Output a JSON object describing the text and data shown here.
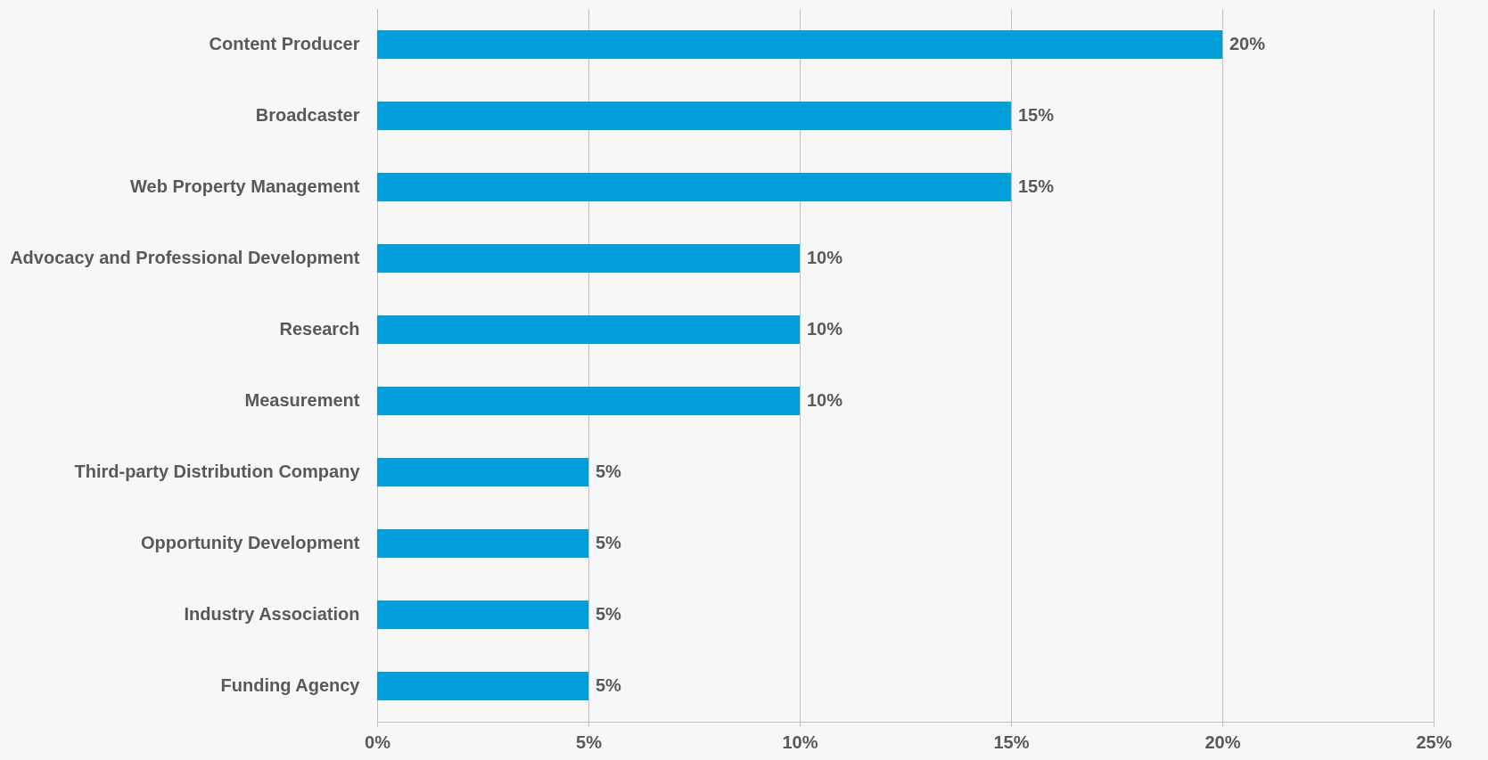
{
  "chart_data": {
    "type": "bar",
    "orientation": "horizontal",
    "categories": [
      "Content Producer",
      "Broadcaster",
      "Web Property Management",
      "Advocacy and Professional Development",
      "Research",
      "Measurement",
      "Third-party Distribution Company",
      "Opportunity Development",
      "Industry Association",
      "Funding Agency"
    ],
    "values": [
      20,
      15,
      15,
      10,
      10,
      10,
      5,
      5,
      5,
      5
    ],
    "value_labels": [
      "20%",
      "15%",
      "15%",
      "10%",
      "10%",
      "10%",
      "5%",
      "5%",
      "5%",
      "5%"
    ],
    "color": "#009fda",
    "xlim": [
      0,
      25
    ],
    "xticks": [
      {
        "value": 0,
        "label": "0%"
      },
      {
        "value": 5,
        "label": "5%"
      },
      {
        "value": 10,
        "label": "10%"
      },
      {
        "value": 15,
        "label": "15%"
      },
      {
        "value": 20,
        "label": "20%"
      },
      {
        "value": 25,
        "label": "25%"
      }
    ],
    "grid": "x"
  }
}
